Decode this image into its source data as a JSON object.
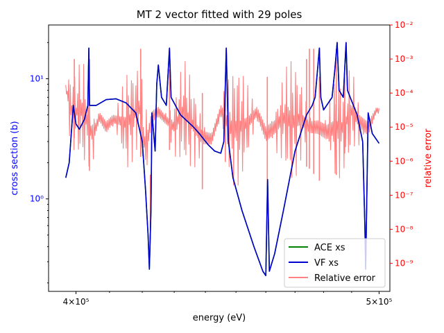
{
  "chart_data": {
    "type": "line",
    "title": "MT 2 vector fitted with 29 poles",
    "xlabel": "energy (eV)",
    "ylabel_left": "cross section (b)",
    "ylabel_right": "relative error",
    "x_scale": "log",
    "y_left_scale": "log",
    "y_right_scale": "log",
    "xlim": [
      392000,
      504000
    ],
    "ylim_left": [
      0.17,
      28
    ],
    "ylim_right": [
      1.5e-10,
      0.01
    ],
    "x_ticks": [
      {
        "value": 400000,
        "label": "4×10⁵"
      },
      {
        "value": 500000,
        "label": "5×10⁵"
      }
    ],
    "y_left_ticks": [
      {
        "value": 1,
        "label": "10⁰"
      },
      {
        "value": 10,
        "label": "10¹"
      }
    ],
    "y_right_ticks": [
      {
        "value": 1e-09,
        "label": "10⁻⁹"
      },
      {
        "value": 1e-08,
        "label": "10⁻⁸"
      },
      {
        "value": 1e-07,
        "label": "10⁻⁷"
      },
      {
        "value": 1e-06,
        "label": "10⁻⁶"
      },
      {
        "value": 1e-05,
        "label": "10⁻⁵"
      },
      {
        "value": 0.0001,
        "label": "10⁻⁴"
      },
      {
        "value": 0.001,
        "label": "10⁻³"
      },
      {
        "value": 0.01,
        "label": "10⁻²"
      }
    ],
    "legend_position": "lower-right",
    "colors": {
      "ace": "#008000",
      "vf": "#0000cc",
      "error": "#ff8080",
      "left_axis": "#0000ff",
      "right_axis": "#ff0000"
    },
    "series": [
      {
        "name": "ACE xs",
        "axis": "left",
        "points": [
          [
            397000,
            1.5
          ],
          [
            398000,
            2.0
          ],
          [
            399200,
            6.0
          ],
          [
            400000,
            4.2
          ],
          [
            401000,
            3.8
          ],
          [
            402500,
            4.6
          ],
          [
            403500,
            6.0
          ],
          [
            403800,
            18.0
          ],
          [
            404000,
            6.0
          ],
          [
            406000,
            6.0
          ],
          [
            409000,
            6.7
          ],
          [
            412000,
            6.8
          ],
          [
            415000,
            6.3
          ],
          [
            418000,
            5.2
          ],
          [
            420000,
            3.0
          ],
          [
            421000,
            1.2
          ],
          [
            421800,
            0.5
          ],
          [
            422200,
            0.26
          ],
          [
            422700,
            0.8
          ],
          [
            423000,
            5.2
          ],
          [
            424000,
            2.5
          ],
          [
            424500,
            9.0
          ],
          [
            425000,
            13.0
          ],
          [
            426000,
            7.0
          ],
          [
            427500,
            6.0
          ],
          [
            428500,
            18.0
          ],
          [
            429000,
            7.0
          ],
          [
            432000,
            5.0
          ],
          [
            436000,
            4.0
          ],
          [
            438000,
            3.5
          ],
          [
            441000,
            2.8
          ],
          [
            443000,
            2.5
          ],
          [
            445000,
            2.4
          ],
          [
            446000,
            3.0
          ],
          [
            446800,
            18.0
          ],
          [
            447500,
            3.0
          ],
          [
            449000,
            1.5
          ],
          [
            452000,
            0.8
          ],
          [
            456000,
            0.4
          ],
          [
            459000,
            0.25
          ],
          [
            460000,
            0.23
          ],
          [
            460600,
            1.45
          ],
          [
            461200,
            0.25
          ],
          [
            463000,
            0.35
          ],
          [
            466000,
            0.8
          ],
          [
            470000,
            2.5
          ],
          [
            474000,
            5.0
          ],
          [
            476000,
            6.0
          ],
          [
            477000,
            7.0
          ],
          [
            478000,
            13.0
          ],
          [
            478500,
            18.0
          ],
          [
            479000,
            7.0
          ],
          [
            480000,
            5.5
          ],
          [
            483000,
            7.0
          ],
          [
            484000,
            12.0
          ],
          [
            484800,
            20.0
          ],
          [
            485500,
            8.0
          ],
          [
            487000,
            7.0
          ],
          [
            488000,
            20.0
          ],
          [
            488500,
            8.0
          ],
          [
            492000,
            5.0
          ],
          [
            494000,
            3.0
          ],
          [
            494800,
            0.6
          ],
          [
            495100,
            0.26
          ],
          [
            495500,
            1.0
          ],
          [
            496000,
            5.2
          ],
          [
            497500,
            3.5
          ],
          [
            500000,
            2.9
          ]
        ]
      },
      {
        "name": "VF xs",
        "axis": "left",
        "points": [
          [
            397000,
            1.5
          ],
          [
            398000,
            2.0
          ],
          [
            399200,
            6.0
          ],
          [
            400000,
            4.2
          ],
          [
            401000,
            3.8
          ],
          [
            402500,
            4.6
          ],
          [
            403500,
            6.0
          ],
          [
            403800,
            18.0
          ],
          [
            404000,
            6.0
          ],
          [
            406000,
            6.0
          ],
          [
            409000,
            6.7
          ],
          [
            412000,
            6.8
          ],
          [
            415000,
            6.3
          ],
          [
            418000,
            5.2
          ],
          [
            420000,
            3.0
          ],
          [
            421000,
            1.2
          ],
          [
            421800,
            0.5
          ],
          [
            422200,
            0.26
          ],
          [
            422700,
            0.8
          ],
          [
            423000,
            5.2
          ],
          [
            424000,
            2.5
          ],
          [
            424500,
            9.0
          ],
          [
            425000,
            13.0
          ],
          [
            426000,
            7.0
          ],
          [
            427500,
            6.0
          ],
          [
            428500,
            18.0
          ],
          [
            429000,
            7.0
          ],
          [
            432000,
            5.0
          ],
          [
            436000,
            4.0
          ],
          [
            438000,
            3.5
          ],
          [
            441000,
            2.8
          ],
          [
            443000,
            2.5
          ],
          [
            445000,
            2.4
          ],
          [
            446000,
            3.0
          ],
          [
            446800,
            18.0
          ],
          [
            447500,
            3.0
          ],
          [
            449000,
            1.5
          ],
          [
            452000,
            0.8
          ],
          [
            456000,
            0.4
          ],
          [
            459000,
            0.25
          ],
          [
            460000,
            0.23
          ],
          [
            460600,
            1.45
          ],
          [
            461200,
            0.25
          ],
          [
            463000,
            0.35
          ],
          [
            466000,
            0.8
          ],
          [
            470000,
            2.5
          ],
          [
            474000,
            5.0
          ],
          [
            476000,
            6.0
          ],
          [
            477000,
            7.0
          ],
          [
            478000,
            13.0
          ],
          [
            478500,
            18.0
          ],
          [
            479000,
            7.0
          ],
          [
            480000,
            5.5
          ],
          [
            483000,
            7.0
          ],
          [
            484000,
            12.0
          ],
          [
            484800,
            20.0
          ],
          [
            485500,
            8.0
          ],
          [
            487000,
            7.0
          ],
          [
            488000,
            20.0
          ],
          [
            488500,
            8.0
          ],
          [
            492000,
            5.0
          ],
          [
            494000,
            3.0
          ],
          [
            494800,
            0.6
          ],
          [
            495100,
            0.26
          ],
          [
            495500,
            1.0
          ],
          [
            496000,
            5.2
          ],
          [
            497500,
            3.5
          ],
          [
            500000,
            2.9
          ]
        ]
      },
      {
        "name": "Relative error",
        "axis": "right",
        "band": [
          [
            397000,
            2e-05,
            0.001
          ],
          [
            398500,
            1e-06,
            0.001
          ],
          [
            400000,
            2e-06,
            0.0004
          ],
          [
            401500,
            1e-06,
            0.001
          ],
          [
            403000,
            3e-07,
            0.001
          ],
          [
            405000,
            1e-07,
            0.0003
          ],
          [
            407000,
            1e-06,
            0.0004
          ],
          [
            409000,
            2e-07,
            0.0005
          ],
          [
            411000,
            1e-06,
            0.0003
          ],
          [
            413000,
            8e-07,
            0.0003
          ],
          [
            415000,
            3e-07,
            0.0006
          ],
          [
            417000,
            1e-06,
            0.0004
          ],
          [
            419000,
            2e-06,
            0.001
          ],
          [
            421000,
            5e-09,
            0.001
          ],
          [
            423000,
            4e-07,
            0.001
          ],
          [
            425000,
            1e-06,
            0.0008
          ],
          [
            427000,
            1e-06,
            0.0003
          ],
          [
            430000,
            5e-07,
            0.0002
          ],
          [
            433000,
            1e-06,
            0.001
          ],
          [
            436000,
            3e-07,
            0.0004
          ],
          [
            439000,
            5e-08,
            0.0005
          ],
          [
            442000,
            1e-07,
            0.0002
          ],
          [
            445000,
            1e-06,
            0.001
          ],
          [
            448000,
            1e-07,
            0.001
          ],
          [
            451000,
            2e-07,
            0.0005
          ],
          [
            454000,
            4e-07,
            0.0005
          ],
          [
            457000,
            1e-06,
            0.0008
          ],
          [
            460000,
            4e-08,
            0.001
          ],
          [
            463000,
            1e-07,
            0.001
          ],
          [
            466000,
            5e-07,
            0.0007
          ],
          [
            469000,
            2e-07,
            0.001
          ],
          [
            472000,
            3e-07,
            0.001
          ],
          [
            475000,
            2e-07,
            0.0005
          ],
          [
            478000,
            1e-07,
            0.001
          ],
          [
            481000,
            5e-08,
            0.001
          ],
          [
            484000,
            1e-07,
            0.001
          ],
          [
            487000,
            5e-07,
            0.0002
          ],
          [
            490000,
            1e-06,
            0.001
          ],
          [
            493000,
            2e-07,
            0.001
          ],
          [
            496000,
            8e-08,
            0.001
          ],
          [
            499000,
            5e-06,
            0.0002
          ],
          [
            500000,
            1e-05,
            0.0001
          ]
        ],
        "spikes": [
          [
            399500,
            0.001
          ],
          [
            404000,
            0.001
          ],
          [
            419500,
            0.002
          ],
          [
            422500,
            5e-09
          ],
          [
            428500,
            0.0005
          ],
          [
            439000,
            0.0001
          ],
          [
            446500,
            0.0003
          ],
          [
            460500,
            0.0003
          ],
          [
            474000,
            0.001
          ],
          [
            475000,
            0.002
          ],
          [
            476500,
            0.002
          ],
          [
            478500,
            0.0003
          ],
          [
            484500,
            0.002
          ],
          [
            487500,
            0.0003
          ]
        ]
      }
    ]
  }
}
